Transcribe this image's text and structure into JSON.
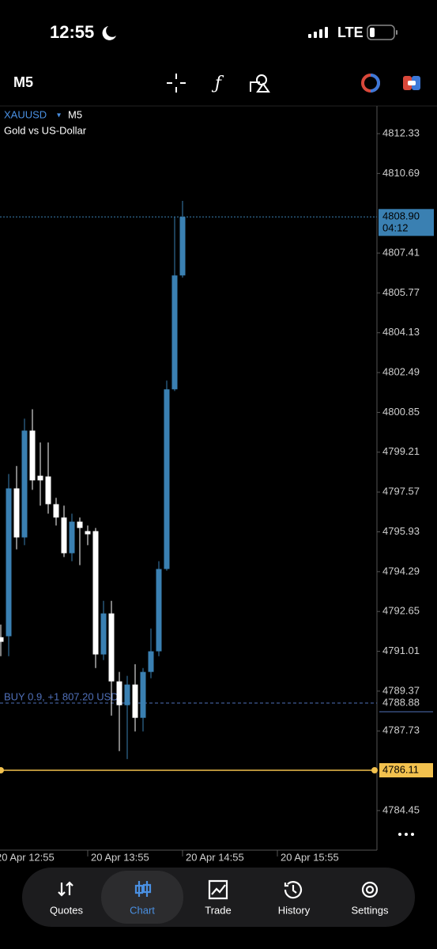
{
  "status_bar": {
    "time": "12:55",
    "network": "LTE"
  },
  "toolbar": {
    "timeframe": "M5"
  },
  "chart_data": {
    "type": "candlestick",
    "symbol": "XAUUSD",
    "timeframe": "M5",
    "description": "Gold vs US-Dollar",
    "up_color": "#3a80b2",
    "down_color": "#ffffff",
    "open": [
      4791.59,
      4791.63,
      4797.72,
      4795.7,
      4800.1,
      4798.24,
      4798.21,
      4797.07,
      4796.52,
      4795.05,
      4796.35,
      4795.96,
      4795.96,
      4790.88,
      4792.57,
      4789.77,
      4788.79,
      4789.64,
      4788.27,
      4790.16,
      4791.01,
      4794.4,
      4801.8,
      4806.49
    ],
    "high": [
      4792.11,
      4798.31,
      4798.64,
      4800.59,
      4800.98,
      4799.61,
      4799.61,
      4797.33,
      4797.01,
      4796.68,
      4796.52,
      4796.19,
      4796.09,
      4793.09,
      4793.09,
      4790.16,
      4790.0,
      4790.48,
      4790.32,
      4791.95,
      4794.72,
      4802.16,
      4808.91,
      4809.56
    ],
    "low": [
      4790.81,
      4790.81,
      4795.21,
      4795.38,
      4797.66,
      4797.01,
      4796.68,
      4796.19,
      4794.89,
      4794.72,
      4794.56,
      4795.38,
      4790.32,
      4790.65,
      4788.36,
      4786.9,
      4786.57,
      4787.71,
      4787.71,
      4789.9,
      4790.81,
      4794.33,
      4801.73,
      4806.4
    ],
    "close": [
      4791.4,
      4797.72,
      4795.7,
      4800.1,
      4798.05,
      4798.05,
      4797.07,
      4796.52,
      4795.05,
      4796.35,
      4796.09,
      4795.83,
      4790.88,
      4792.57,
      4789.77,
      4788.79,
      4789.64,
      4788.27,
      4790.16,
      4791.01,
      4794.4,
      4801.8,
      4806.49,
      4808.9
    ],
    "ylim": [
      4782.82,
      4813.47
    ],
    "yticks": [
      4812.33,
      4810.69,
      4807.41,
      4805.77,
      4804.13,
      4802.49,
      4800.85,
      4799.21,
      4797.57,
      4795.93,
      4794.29,
      4792.65,
      4791.01,
      4789.37,
      4787.73,
      4784.45
    ],
    "xticks": [
      "20 Apr 12:55",
      "20 Apr 13:55",
      "20 Apr 14:55",
      "20 Apr 15:55"
    ],
    "price_line": {
      "value": 4808.9,
      "label": "4808.90",
      "timer": "04:12",
      "color": "#3a80b2"
    },
    "position_line": {
      "value": 4788.88,
      "text": "BUY 0.9, +1 807.20 USD",
      "color": "#4f6fb8"
    },
    "alert_line": {
      "value": 4786.11,
      "color": "#f2c14e"
    }
  },
  "nav": {
    "tabs": [
      "Quotes",
      "Chart",
      "Trade",
      "History",
      "Settings"
    ],
    "active": 1
  }
}
